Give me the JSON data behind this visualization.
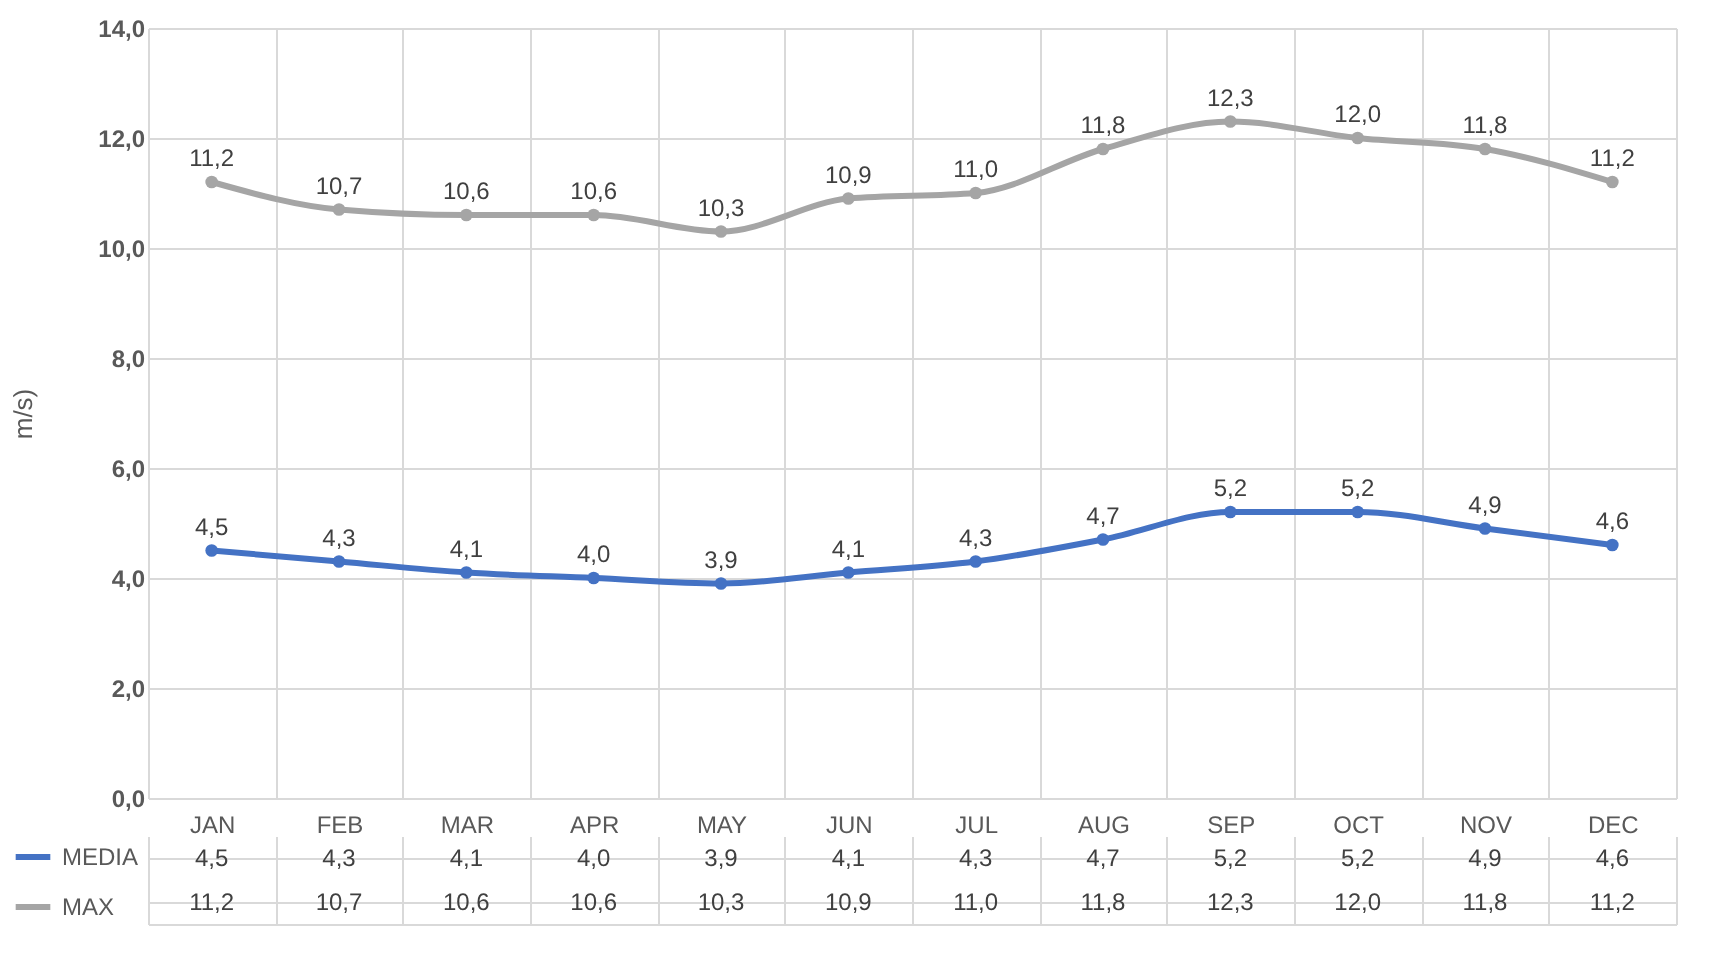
{
  "chart_data": {
    "type": "line",
    "ylabel": "m/s)",
    "categories": [
      "JAN",
      "FEB",
      "MAR",
      "APR",
      "MAY",
      "JUN",
      "JUL",
      "AUG",
      "SEP",
      "OCT",
      "NOV",
      "DEC"
    ],
    "series": [
      {
        "name": "MEDIA",
        "color": "#4472c4",
        "values": [
          4.5,
          4.3,
          4.1,
          4.0,
          3.9,
          4.1,
          4.3,
          4.7,
          5.2,
          5.2,
          4.9,
          4.6
        ],
        "value_labels": [
          "4,5",
          "4,3",
          "4,1",
          "4,0",
          "3,9",
          "4,1",
          "4,3",
          "4,7",
          "5,2",
          "5,2",
          "4,9",
          "4,6"
        ]
      },
      {
        "name": "MAX",
        "color": "#a5a5a5",
        "values": [
          11.2,
          10.7,
          10.6,
          10.6,
          10.3,
          10.9,
          11.0,
          11.8,
          12.3,
          12.0,
          11.8,
          11.2
        ],
        "value_labels": [
          "11,2",
          "10,7",
          "10,6",
          "10,6",
          "10,3",
          "10,9",
          "11,0",
          "11,8",
          "12,3",
          "12,0",
          "11,8",
          "11,2"
        ]
      }
    ],
    "ylim": [
      0,
      14
    ],
    "yticks": [
      {
        "value": 0,
        "label": "0,0"
      },
      {
        "value": 2,
        "label": "2,0"
      },
      {
        "value": 4,
        "label": "4,0"
      },
      {
        "value": 6,
        "label": "6,0"
      },
      {
        "value": 8,
        "label": "8,0"
      },
      {
        "value": 10,
        "label": "10,0"
      },
      {
        "value": 12,
        "label": "12,0"
      },
      {
        "value": 14,
        "label": "14,0"
      }
    ],
    "grid": true,
    "legend": "bottom",
    "marker": "circle",
    "line_style": "solid"
  }
}
